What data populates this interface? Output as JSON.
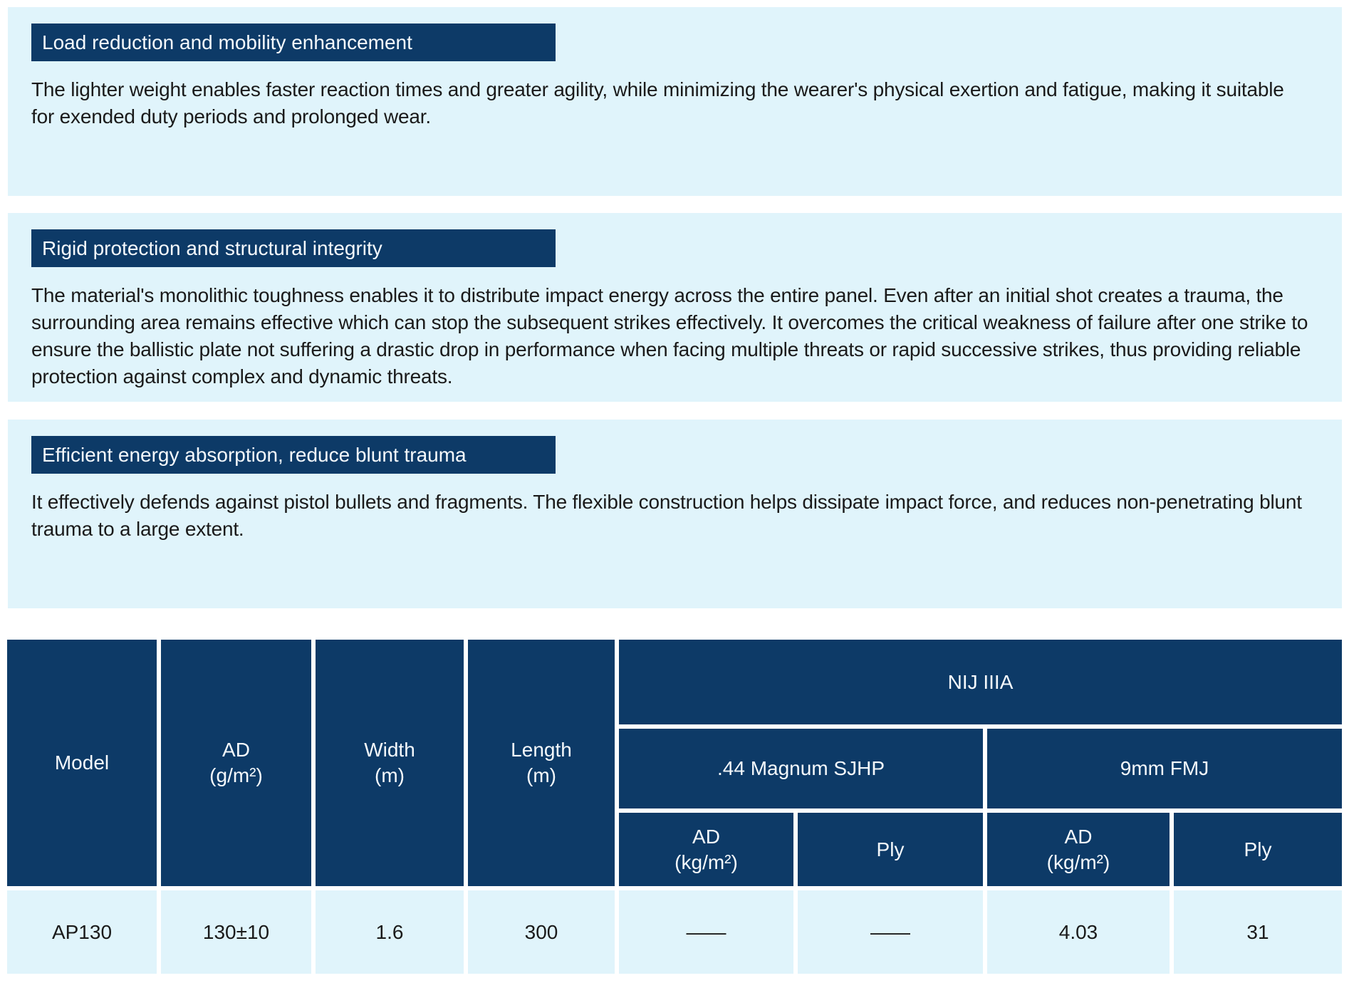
{
  "colors": {
    "navy": "#0d3a67",
    "panel_blue": "#e0f4fb",
    "body_text": "#1a1a1a",
    "header_text": "#ffffff"
  },
  "sections": [
    {
      "title": "Load reduction and mobility enhancement",
      "body": "The lighter weight enables faster reaction times and greater agility, while minimizing the wearer's physical exertion and fatigue, making it suitable for exended duty periods and prolonged wear."
    },
    {
      "title": "Rigid protection and structural integrity",
      "body": "The material's monolithic toughness enables it to distribute impact energy across the entire panel. Even after an initial shot creates a trauma, the surrounding area remains effective which can stop the subsequent strikes effectively. It overcomes the critical weakness of failure after one strike to ensure the ballistic plate not suffering a drastic drop in performance when facing multiple threats or rapid successive strikes, thus providing reliable protection against complex and dynamic threats."
    },
    {
      "title": "Efficient energy absorption, reduce blunt trauma",
      "body": "It effectively defends against pistol bullets and fragments. The flexible construction helps dissipate impact force, and reduces non-penetrating blunt trauma to a large extent."
    }
  ],
  "table": {
    "headers": {
      "model": "Model",
      "ad_gm2": {
        "l1": "AD",
        "l2": "(g/m²)"
      },
      "width": {
        "l1": "Width",
        "l2": "(m)"
      },
      "length": {
        "l1": "Length",
        "l2": "(m)"
      },
      "nij": "NIJ IIIA",
      "magnum": ".44 Magnum SJHP",
      "fmj": "9mm FMJ",
      "ad_kgm2_magnum": {
        "l1": "AD",
        "l2": "(kg/m²)"
      },
      "ply_magnum": "Ply",
      "ad_kgm2_fmj": {
        "l1": "AD",
        "l2": "(kg/m²)"
      },
      "ply_fmj": "Ply"
    },
    "rows": [
      {
        "model": "AP130",
        "ad_gm2": "130±10",
        "width": "1.6",
        "length": "300",
        "magnum_ad": "——",
        "magnum_ply": "——",
        "fmj_ad": "4.03",
        "fmj_ply": "31"
      }
    ]
  }
}
